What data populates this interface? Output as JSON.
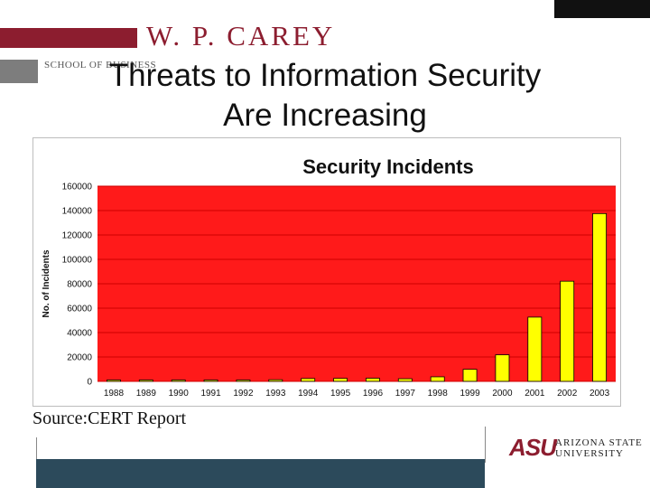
{
  "header": {
    "brand_title": "W. P. CAREY",
    "school_line": "SCHOOL OF BUSINESS"
  },
  "slide": {
    "title_line1": "Threats to Information Security",
    "title_line2": "Are Increasing",
    "source": "Source:CERT Report"
  },
  "footer": {
    "asu_letters": "ASU",
    "asu_name_line1": "ARIZONA STATE",
    "asu_name_line2": "UNIVERSITY"
  },
  "colors": {
    "brand_maroon": "#8c1d2f",
    "plot_background": "#ff1a1a",
    "bar_fill": "#ffff00",
    "footer_bar": "#2c4a5b"
  },
  "chart_data": {
    "type": "bar",
    "title": "Security Incidents",
    "xlabel": "",
    "ylabel": "No. of Incidents",
    "categories": [
      "1988",
      "1989",
      "1990",
      "1991",
      "1992",
      "1993",
      "1994",
      "1995",
      "1996",
      "1997",
      "1998",
      "1999",
      "2000",
      "2001",
      "2002",
      "2003"
    ],
    "values": [
      6,
      132,
      252,
      406,
      773,
      1334,
      2340,
      2412,
      2573,
      2134,
      3734,
      9859,
      21756,
      52658,
      82094,
      137529
    ],
    "ylim": [
      0,
      160000
    ],
    "yticks": [
      "0",
      "20000",
      "40000",
      "60000",
      "80000",
      "100000",
      "120000",
      "140000",
      "160000"
    ],
    "grid": true,
    "legend": "none"
  }
}
